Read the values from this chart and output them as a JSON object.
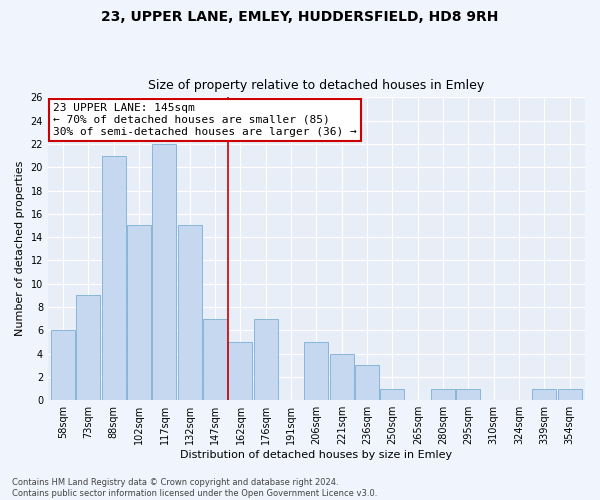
{
  "title": "23, UPPER LANE, EMLEY, HUDDERSFIELD, HD8 9RH",
  "subtitle": "Size of property relative to detached houses in Emley",
  "xlabel": "Distribution of detached houses by size in Emley",
  "ylabel": "Number of detached properties",
  "categories": [
    "58sqm",
    "73sqm",
    "88sqm",
    "102sqm",
    "117sqm",
    "132sqm",
    "147sqm",
    "162sqm",
    "176sqm",
    "191sqm",
    "206sqm",
    "221sqm",
    "236sqm",
    "250sqm",
    "265sqm",
    "280sqm",
    "295sqm",
    "310sqm",
    "324sqm",
    "339sqm",
    "354sqm"
  ],
  "values": [
    6,
    9,
    21,
    15,
    22,
    15,
    7,
    5,
    7,
    0,
    5,
    4,
    3,
    1,
    0,
    1,
    1,
    0,
    0,
    1,
    1
  ],
  "bar_color": "#c5d8f0",
  "bar_edge_color": "#7bafd4",
  "vline_x": 6.5,
  "vline_color": "#cc0000",
  "annotation_line1": "23 UPPER LANE: 145sqm",
  "annotation_line2": "← 70% of detached houses are smaller (85)",
  "annotation_line3": "30% of semi-detached houses are larger (36) →",
  "annotation_box_color": "#cc0000",
  "ylim": [
    0,
    26
  ],
  "yticks": [
    0,
    2,
    4,
    6,
    8,
    10,
    12,
    14,
    16,
    18,
    20,
    22,
    24,
    26
  ],
  "footnote": "Contains HM Land Registry data © Crown copyright and database right 2024.\nContains public sector information licensed under the Open Government Licence v3.0.",
  "bg_color": "#e8eef8",
  "fig_bg_color": "#f0f4fc",
  "title_fontsize": 10,
  "subtitle_fontsize": 9,
  "axis_label_fontsize": 8,
  "tick_fontsize": 7,
  "annotation_fontsize": 8,
  "footnote_fontsize": 6
}
